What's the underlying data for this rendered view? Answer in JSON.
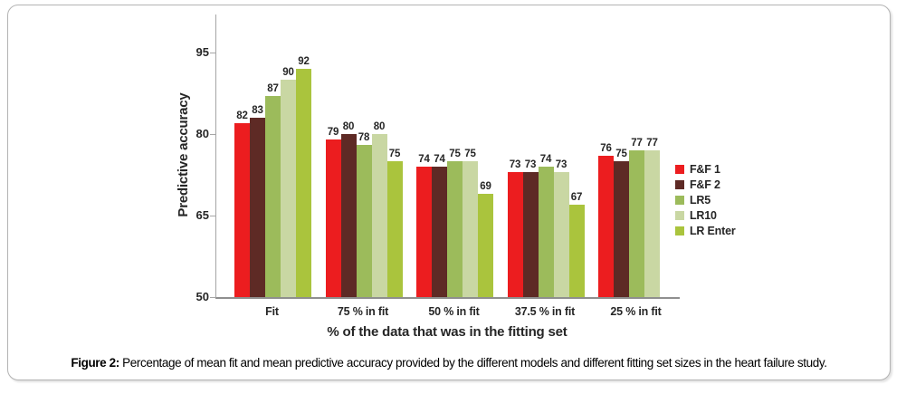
{
  "chart_data": {
    "type": "bar",
    "title": "",
    "xlabel": "% of the data that was in the fitting set",
    "ylabel": "Predictive accuracy",
    "categories": [
      "Fit",
      "75 % in fit",
      "50 % in fit",
      "37.5 % in fit",
      "25 % in fit"
    ],
    "series": [
      {
        "name": "F&F 1",
        "color": "#EC1D1F",
        "values": [
          82,
          79,
          74,
          73,
          76
        ]
      },
      {
        "name": "F&F 2",
        "color": "#5E2A25",
        "values": [
          83,
          80,
          74,
          73,
          75
        ]
      },
      {
        "name": "LR5",
        "color": "#9CBB5B",
        "values": [
          87,
          78,
          75,
          74,
          77
        ]
      },
      {
        "name": "LR10",
        "color": "#C9D7A3",
        "values": [
          90,
          80,
          75,
          73,
          77
        ]
      },
      {
        "name": "LR Enter",
        "color": "#AAC43D",
        "values": [
          92,
          75,
          69,
          67,
          null
        ]
      }
    ],
    "y_ticks": [
      95,
      80,
      65,
      50
    ],
    "ylim": [
      50,
      102
    ],
    "baseline": 50,
    "grid": false,
    "legend_position": "right",
    "bar_value_labels_shown": true,
    "text_color": "#262626",
    "axis_color": "#a6a6a6"
  },
  "caption": {
    "prefix": "Figure 2:",
    "text": " Percentage of mean fit and mean predictive accuracy provided by the different models and different fitting set sizes in the heart failure study."
  }
}
